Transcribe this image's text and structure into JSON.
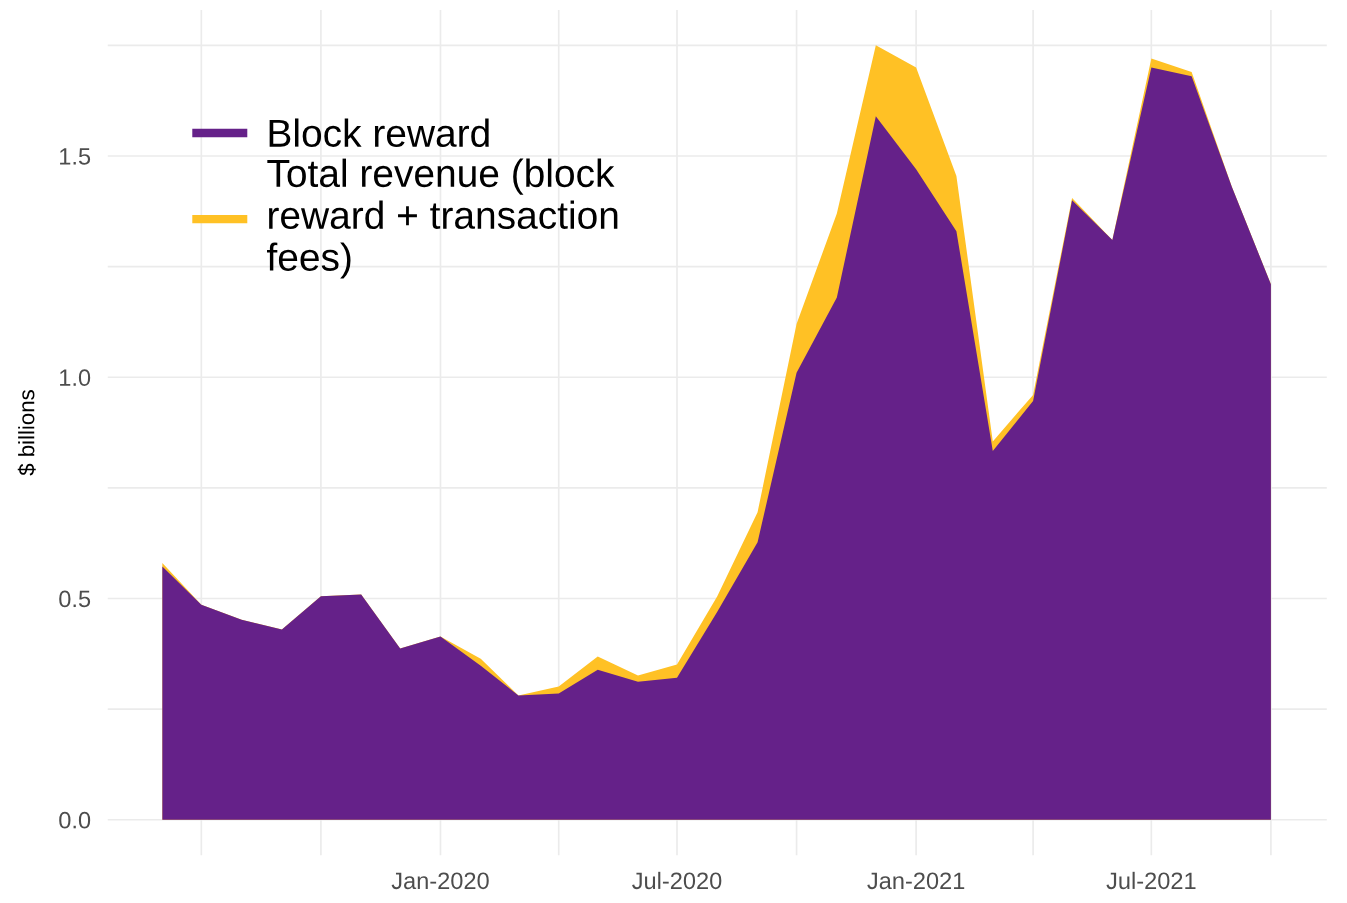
{
  "chart_data": {
    "type": "area",
    "ylabel": "$ billions",
    "x": [
      "2019-06",
      "2019-07",
      "2019-08",
      "2019-09",
      "2019-10",
      "2019-11",
      "2019-12",
      "2020-01",
      "2020-02",
      "2020-03",
      "2020-04",
      "2020-05",
      "2020-06",
      "2020-07",
      "2020-08",
      "2020-09",
      "2020-10",
      "2020-11",
      "2020-12",
      "2021-01",
      "2021-02",
      "2021-03",
      "2021-04",
      "2021-05",
      "2021-06",
      "2021-07",
      "2021-08",
      "2021-09",
      "2021-10"
    ],
    "series": [
      {
        "name": "Total revenue (block\nreward + transaction\nfees)",
        "color": "#ffc125",
        "values": [
          0.58,
          0.486,
          0.452,
          0.43,
          0.505,
          0.509,
          0.387,
          0.414,
          0.364,
          0.281,
          0.301,
          0.369,
          0.326,
          0.351,
          0.505,
          0.695,
          1.12,
          1.37,
          1.75,
          1.7,
          1.455,
          0.855,
          0.96,
          1.405,
          1.31,
          1.72,
          1.69,
          1.43,
          1.21
        ]
      },
      {
        "name": "Block reward",
        "color": "#652189",
        "values": [
          0.572,
          0.486,
          0.452,
          0.43,
          0.505,
          0.509,
          0.387,
          0.414,
          0.348,
          0.281,
          0.285,
          0.339,
          0.312,
          0.321,
          0.47,
          0.627,
          1.01,
          1.18,
          1.59,
          1.47,
          1.33,
          0.833,
          0.946,
          1.4,
          1.31,
          1.7,
          1.68,
          1.43,
          1.21
        ]
      }
    ],
    "xlim": [
      "2019-04-20",
      "2021-11-13"
    ],
    "xticks": [
      {
        "value": "2019-07",
        "label": null
      },
      {
        "value": "2019-10",
        "label": null
      },
      {
        "value": "2020-01",
        "label": "Jan-2020"
      },
      {
        "value": "2020-04",
        "label": null
      },
      {
        "value": "2020-07",
        "label": "Jul-2020"
      },
      {
        "value": "2020-10",
        "label": null
      },
      {
        "value": "2021-01",
        "label": "Jan-2021"
      },
      {
        "value": "2021-04",
        "label": null
      },
      {
        "value": "2021-07",
        "label": "Jul-2021"
      },
      {
        "value": "2021-10",
        "label": null
      }
    ],
    "ylim": [
      -0.08,
      1.83
    ],
    "yticks": [
      {
        "value": 0,
        "label": "0.0"
      },
      {
        "value": 0.25,
        "label": null
      },
      {
        "value": 0.5,
        "label": "0.5"
      },
      {
        "value": 0.75,
        "label": null
      },
      {
        "value": 1.0,
        "label": "1.0"
      },
      {
        "value": 1.25,
        "label": null
      },
      {
        "value": 1.5,
        "label": "1.5"
      },
      {
        "value": 1.75,
        "label": null
      }
    ],
    "grid": true,
    "legend": "top left"
  }
}
